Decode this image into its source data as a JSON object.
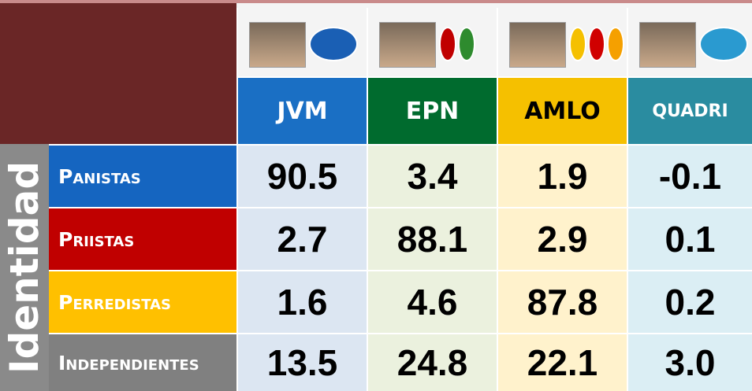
{
  "table": {
    "side_label": "Identidad",
    "columns": [
      "JVM",
      "EPN",
      "AMLO",
      "QUADRI"
    ],
    "rows": [
      {
        "label": "Panistas",
        "values": [
          "90.5",
          "3.4",
          "1.9",
          "-0.1"
        ]
      },
      {
        "label": "Priistas",
        "values": [
          "2.7",
          "88.1",
          "2.9",
          "0.1"
        ]
      },
      {
        "label": "Perredistas",
        "values": [
          "1.6",
          "4.6",
          "87.8",
          "0.2"
        ]
      },
      {
        "label": "Independientes",
        "values": [
          "13.5",
          "24.8",
          "22.1",
          "3.0"
        ]
      }
    ]
  }
}
